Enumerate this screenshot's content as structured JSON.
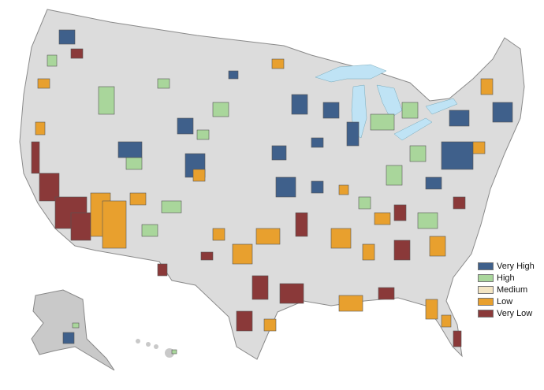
{
  "legend": {
    "items": [
      {
        "label": "Very High",
        "color": "#3f608b"
      },
      {
        "label": "High",
        "color": "#a9d69b"
      },
      {
        "label": "Medium",
        "color": "#f3e5c3"
      },
      {
        "label": "Low",
        "color": "#e8a02e"
      },
      {
        "label": "Very Low",
        "color": "#8a3939"
      }
    ]
  },
  "colors": {
    "land": "#dcdcdc",
    "border": "#9a9a9a",
    "water": "#bfe3f5"
  }
}
